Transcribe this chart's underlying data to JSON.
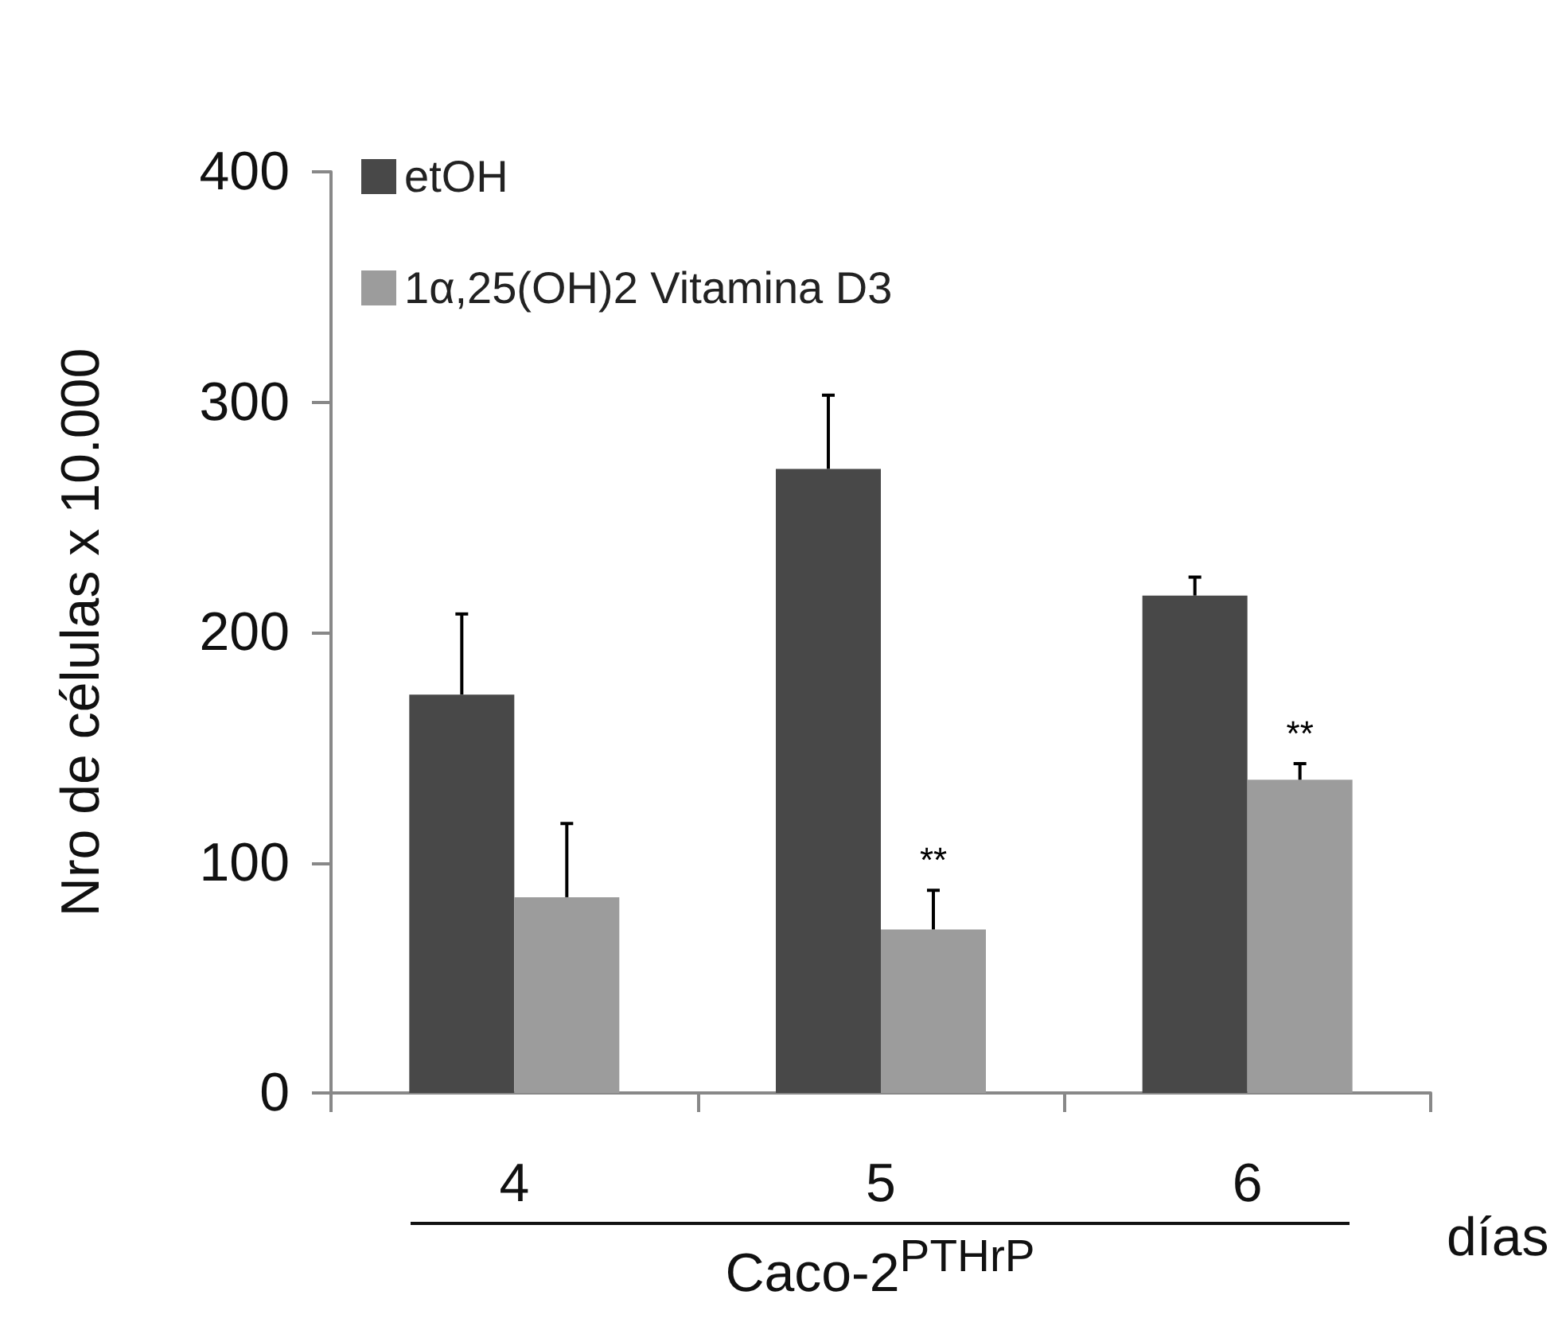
{
  "chart_data": {
    "type": "bar",
    "ylabel": "Nro de células x 10.000",
    "xlabel": "días",
    "categories": [
      "4",
      "5",
      "6"
    ],
    "series": [
      {
        "name": "etOH",
        "color": "#484848",
        "values": [
          173,
          271,
          216
        ],
        "errors": [
          [
            173,
            208
          ],
          [
            271,
            303
          ],
          [
            216,
            224
          ]
        ]
      },
      {
        "name": "1α,25(OH)2 Vitamina D3",
        "color": "#9c9c9c",
        "values": [
          85,
          71,
          136
        ],
        "errors": [
          [
            85,
            117
          ],
          [
            71,
            88
          ],
          [
            136,
            143
          ]
        ]
      }
    ],
    "ylim": [
      0,
      400
    ],
    "yticks": [
      0,
      100,
      200,
      300,
      400
    ],
    "grid": false,
    "legend": "top left",
    "annotations": [
      {
        "text": "**",
        "x": "5",
        "y": 88
      },
      {
        "text": "**",
        "x": "6",
        "y": 143
      },
      "Caco-2$^{PTHrP}$"
    ]
  }
}
